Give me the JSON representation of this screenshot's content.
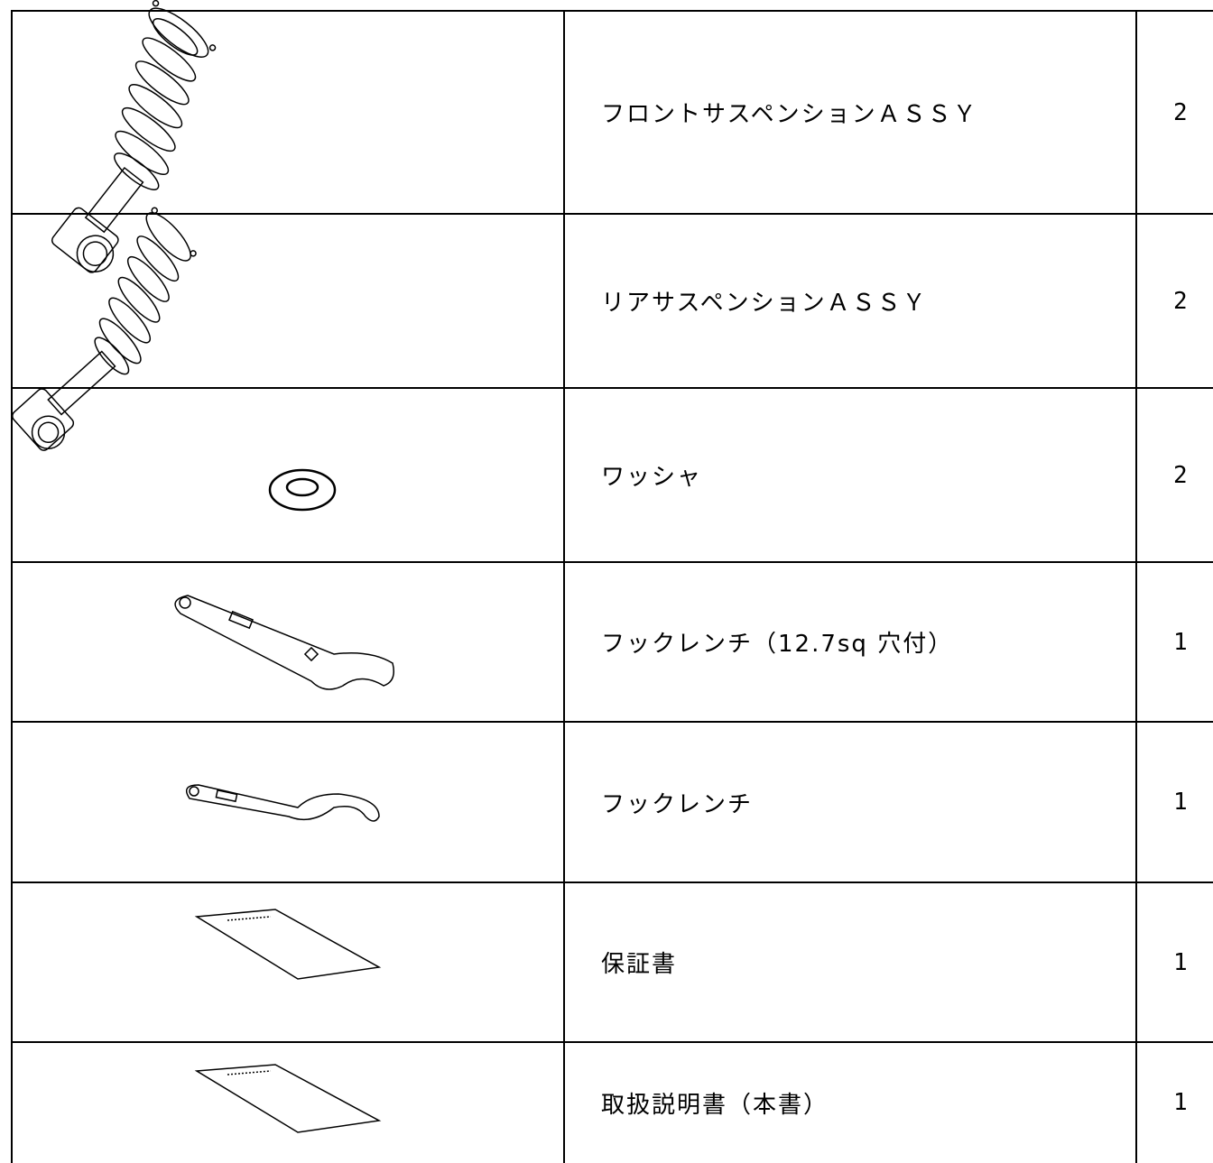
{
  "table": {
    "rows": [
      [
        "フロントサスペンションＡＳＳＹ",
        2
      ],
      [
        "リアサスペンションＡＳＳＹ",
        2
      ],
      [
        "ワッシャ",
        2
      ],
      [
        "フックレンチ（12.7sq 穴付）",
        1
      ],
      [
        "フックレンチ",
        1
      ],
      [
        "保証書",
        1
      ],
      [
        "取扱説明書（本書）",
        1
      ]
    ]
  }
}
